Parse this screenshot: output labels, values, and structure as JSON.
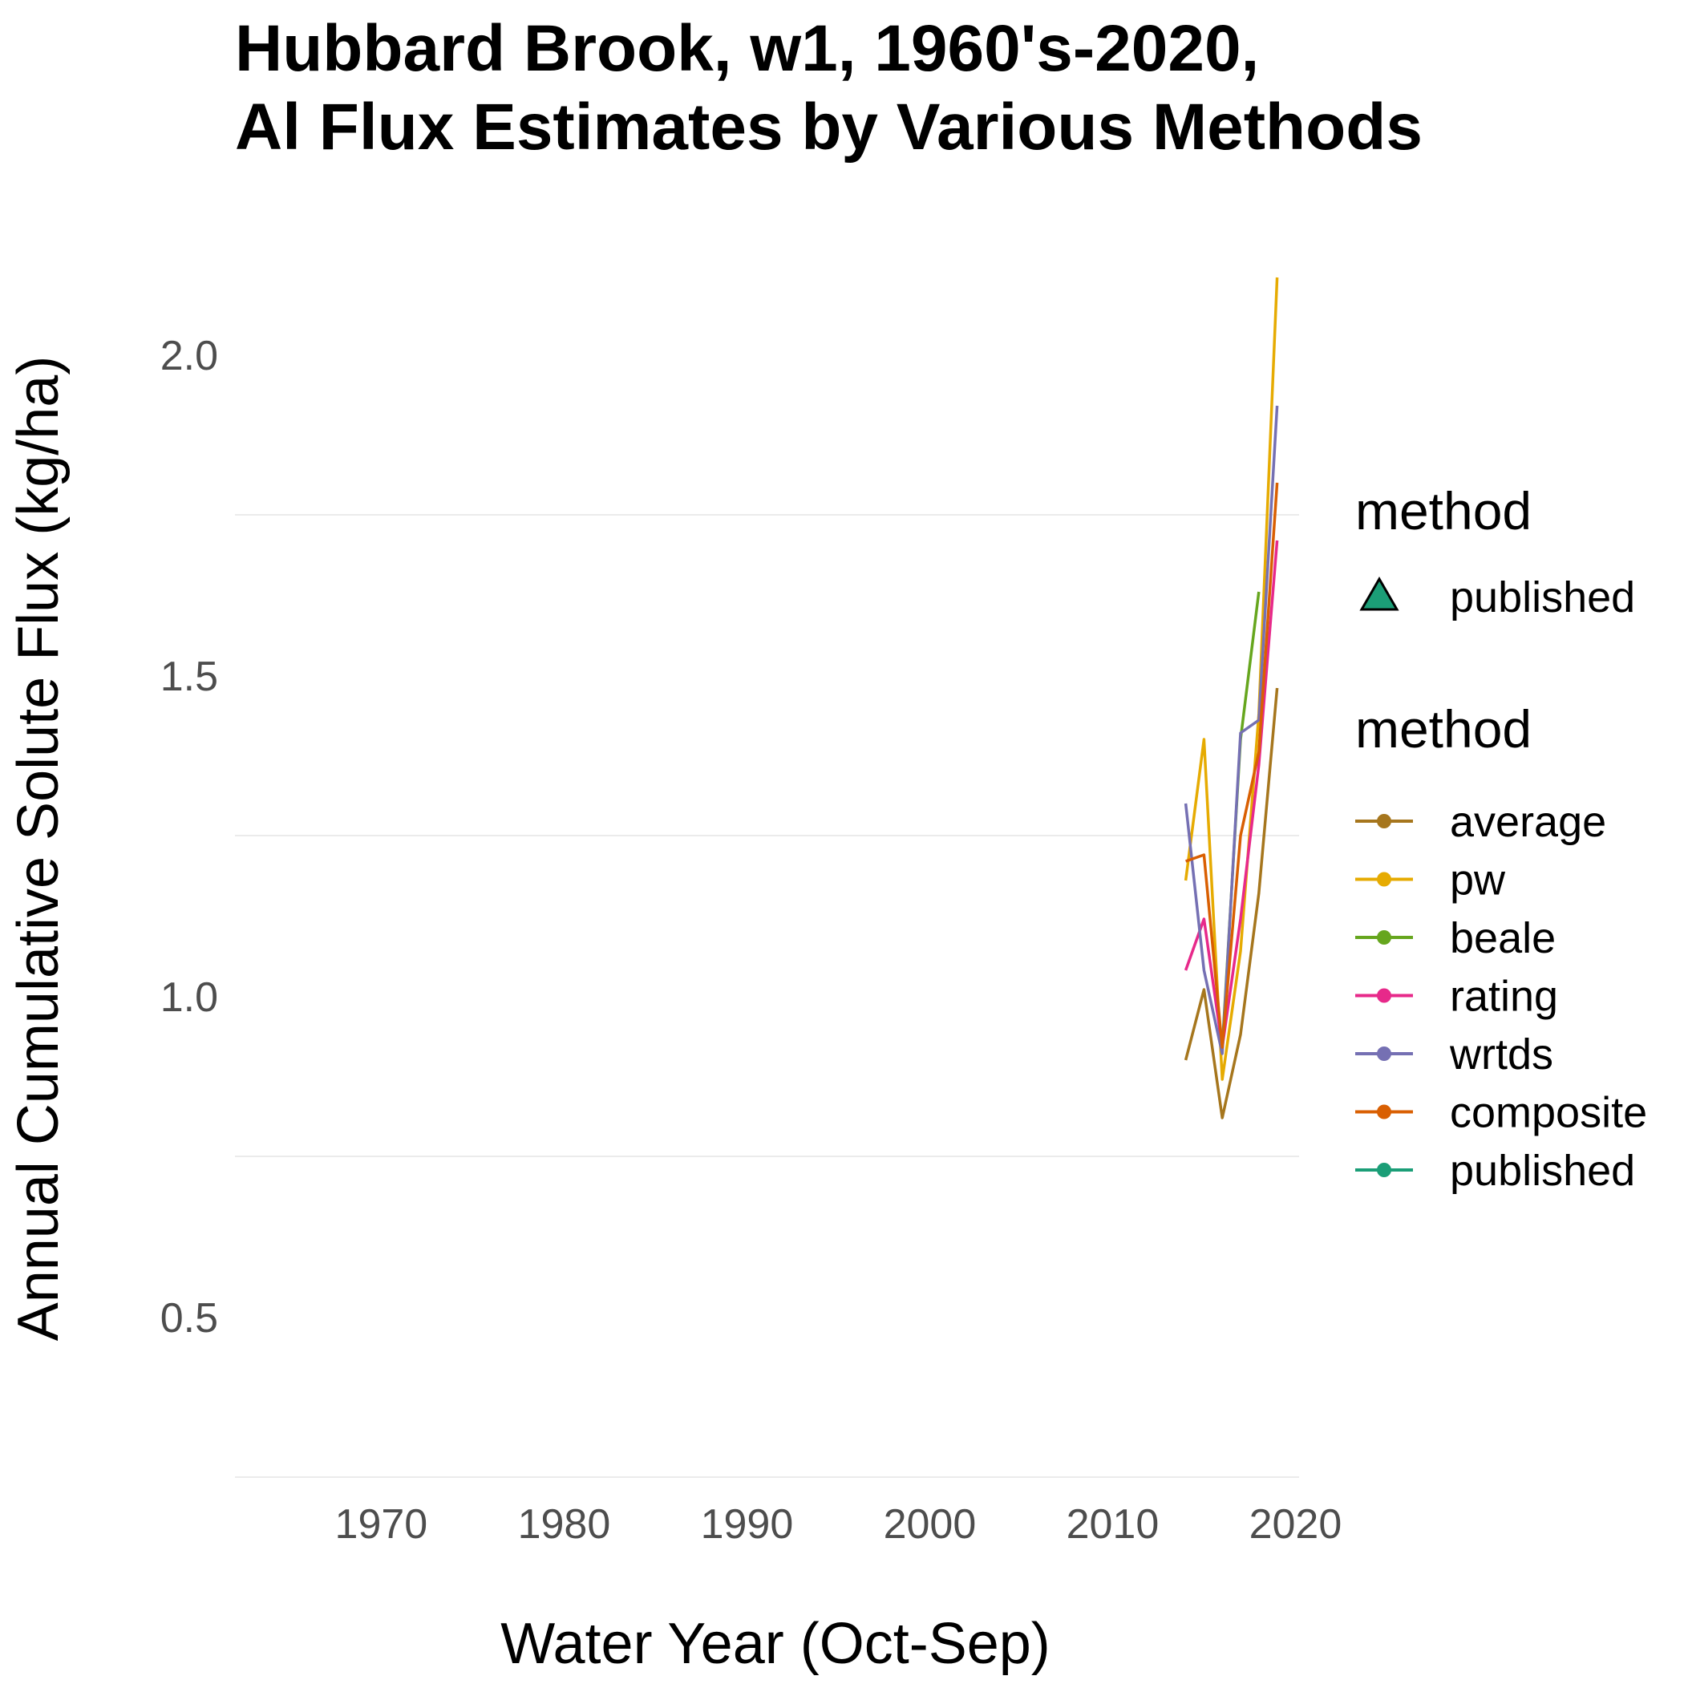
{
  "chart_data": {
    "type": "line",
    "title_lines": [
      "Hubbard Brook, w1, 1960's-2020,",
      "Al Flux Estimates by Various Methods"
    ],
    "xlabel": "Water Year (Oct-Sep)",
    "ylabel": "Annual Cumulative Solute Flux (kg/ha)",
    "xlim": [
      1962,
      2020.2
    ],
    "ylim": [
      0.25,
      2.2
    ],
    "x_ticks": [
      1970,
      1980,
      1990,
      2000,
      2010,
      2020
    ],
    "y_ticks": [
      0.5,
      1.0,
      1.5,
      2.0
    ],
    "y_tick_labels": [
      "0.5",
      "1.0",
      "1.5",
      "2.0"
    ],
    "y_gridlines": [
      0.25,
      0.75,
      1.25,
      1.75
    ],
    "grid": "horizontal only",
    "legend_position": "right",
    "x": [
      2014,
      2015,
      2016,
      2017,
      2018,
      2019
    ],
    "series": [
      {
        "name": "average",
        "color": "#A6761D",
        "values": [
          0.9,
          1.01,
          0.81,
          0.94,
          1.16,
          1.48
        ]
      },
      {
        "name": "pw",
        "color": "#E6AB02",
        "values": [
          1.18,
          1.4,
          0.87,
          1.07,
          1.44,
          2.12
        ]
      },
      {
        "name": "beale",
        "color": "#66A61E",
        "values": [
          null,
          null,
          0.92,
          1.4,
          1.63,
          null
        ]
      },
      {
        "name": "rating",
        "color": "#E7298A",
        "values": [
          1.04,
          1.12,
          0.92,
          1.12,
          1.36,
          1.71
        ]
      },
      {
        "name": "wrtds",
        "color": "#7570B3",
        "values": [
          1.3,
          1.04,
          0.91,
          1.41,
          1.43,
          1.92
        ]
      },
      {
        "name": "composite",
        "color": "#D95F02",
        "values": [
          1.21,
          1.22,
          0.92,
          1.25,
          1.38,
          1.8
        ]
      },
      {
        "name": "published",
        "color": "#1B9E77",
        "values": [
          null,
          null,
          null,
          null,
          null,
          null
        ]
      }
    ],
    "legend_shape": {
      "title": "method",
      "entries": [
        {
          "label": "published",
          "shape": "triangle",
          "color": "#1B9E77"
        }
      ]
    },
    "legend_color": {
      "title": "method",
      "entries": [
        "average",
        "pw",
        "beale",
        "rating",
        "wrtds",
        "composite",
        "published"
      ]
    }
  }
}
